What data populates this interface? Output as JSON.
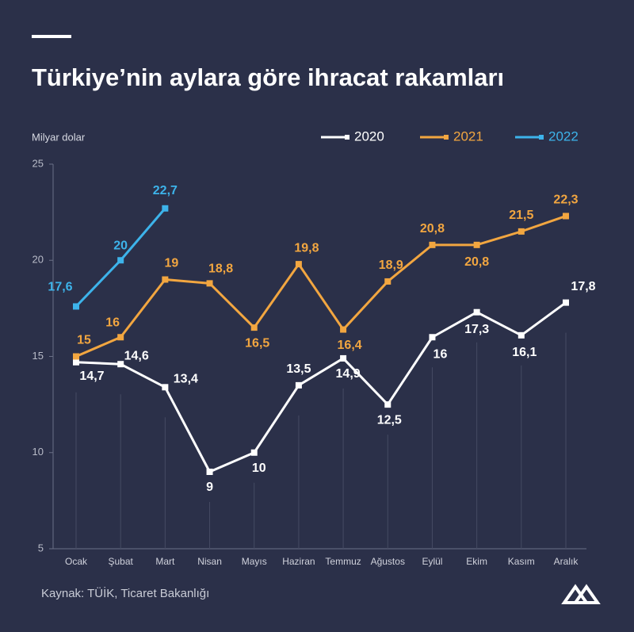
{
  "chart_data": {
    "type": "line",
    "title": "Türkiye’nin aylara göre ihracat rakamları",
    "y_axis_label": "Milyar dolar",
    "source": "Kaynak: TÜİK, Ticaret Bakanlığı",
    "categories": [
      "Ocak",
      "Şubat",
      "Mart",
      "Nisan",
      "Mayıs",
      "Haziran",
      "Temmuz",
      "Ağustos",
      "Eylül",
      "Ekim",
      "Kasım",
      "Aralık"
    ],
    "series": [
      {
        "name": "2020",
        "color": "#ffffff",
        "values": [
          14.7,
          14.6,
          13.4,
          9,
          10,
          13.5,
          14.9,
          12.5,
          16,
          17.3,
          16.1,
          17.8
        ],
        "value_labels": [
          "14,7",
          "14,6",
          "13,4",
          "9",
          "10",
          "13,5",
          "14,9",
          "12,5",
          "16",
          "17,3",
          "16,1",
          "17,8"
        ]
      },
      {
        "name": "2021",
        "color": "#f2a640",
        "values": [
          15,
          16,
          19,
          18.8,
          16.5,
          19.8,
          16.4,
          18.9,
          20.8,
          20.8,
          21.5,
          22.3
        ],
        "value_labels": [
          "15",
          "16",
          "19",
          "18,8",
          "16,5",
          "19,8",
          "16,4",
          "18,9",
          "20,8",
          "20,8",
          "21,5",
          "22,3"
        ]
      },
      {
        "name": "2022",
        "color": "#3db3ea",
        "values": [
          17.6,
          20,
          22.7,
          null,
          null,
          null,
          null,
          null,
          null,
          null,
          null,
          null
        ],
        "value_labels": [
          "17,6",
          "20",
          "22,7",
          null,
          null,
          null,
          null,
          null,
          null,
          null,
          null,
          null
        ]
      }
    ],
    "ylim": [
      5,
      25
    ],
    "yticks": [
      5,
      10,
      15,
      20,
      25
    ],
    "legend": "top-right"
  }
}
